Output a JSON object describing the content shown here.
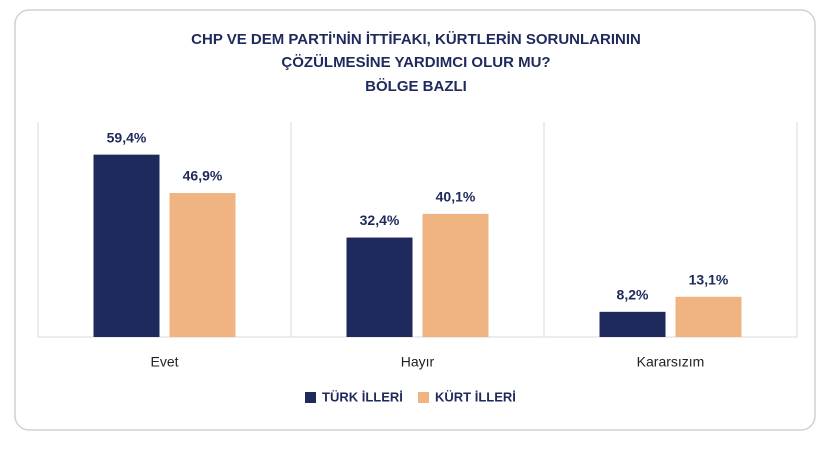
{
  "chart_data": {
    "type": "bar",
    "title": [
      "CHP VE DEM PARTİ'NİN İTTİFAKI, KÜRTLERİN SORUNLARININ",
      "ÇÖZÜLMESİNE YARDIMCI OLUR MU?"
    ],
    "subtitle": "BÖLGE BAZLI",
    "categories": [
      "Evet",
      "Hayır",
      "Kararsızım"
    ],
    "series": [
      {
        "name": "TÜRK İLLERİ",
        "color": "#1f2a5c",
        "values": [
          59.4,
          32.4,
          8.2
        ],
        "value_labels": [
          "59,4%",
          "32,4%",
          "8,2%"
        ]
      },
      {
        "name": "KÜRT İLLERİ",
        "color": "#f0b483",
        "values": [
          46.9,
          40.1,
          13.1
        ],
        "value_labels": [
          "46,9%",
          "40,1%",
          "13,1%"
        ]
      }
    ]
  }
}
